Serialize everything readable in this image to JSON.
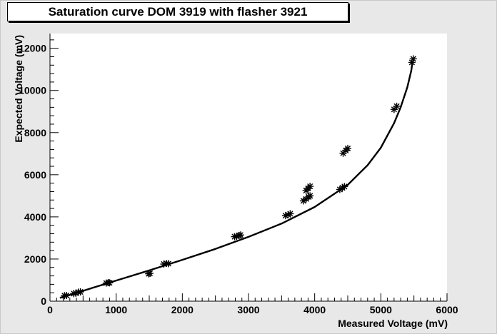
{
  "chart_data": {
    "type": "scatter",
    "title": "Saturation curve DOM 3919 with flasher 3921",
    "xlabel": "Measured Voltage (mV)",
    "ylabel": "Expected Voltage (mV)",
    "xlim": [
      0,
      6000
    ],
    "ylim": [
      0,
      12700
    ],
    "x_ticks": [
      "0",
      "1000",
      "2000",
      "3000",
      "4000",
      "5000",
      "6000"
    ],
    "y_ticks": [
      "0",
      "2000",
      "4000",
      "6000",
      "8000",
      "10000",
      "12000"
    ],
    "x_tick_values": [
      0,
      1000,
      2000,
      3000,
      4000,
      5000,
      6000
    ],
    "y_tick_values": [
      0,
      2000,
      4000,
      6000,
      8000,
      10000,
      12000
    ],
    "grid": false,
    "legend": "none",
    "marker_color": "#000000",
    "background_color": "#e8e8e8",
    "plot_background_color": "#ffffff",
    "series": [
      {
        "values": [
          [
            220,
            260
          ],
          [
            250,
            270
          ],
          [
            360,
            360
          ],
          [
            390,
            380
          ],
          [
            430,
            430
          ],
          [
            460,
            440
          ],
          [
            850,
            860
          ],
          [
            880,
            880
          ],
          [
            900,
            870
          ],
          [
            1490,
            1300
          ],
          [
            1510,
            1320
          ],
          [
            1720,
            1760
          ],
          [
            1760,
            1790
          ],
          [
            1790,
            1780
          ],
          [
            2790,
            3060
          ],
          [
            2820,
            3080
          ],
          [
            2860,
            3120
          ],
          [
            2880,
            3140
          ],
          [
            3560,
            4060
          ],
          [
            3600,
            4100
          ],
          [
            3630,
            4150
          ],
          [
            3830,
            4760
          ],
          [
            3870,
            4850
          ],
          [
            3910,
            4950
          ],
          [
            3930,
            5000
          ],
          [
            3870,
            5250
          ],
          [
            3900,
            5350
          ],
          [
            3930,
            5450
          ],
          [
            4380,
            5300
          ],
          [
            4420,
            5380
          ],
          [
            4450,
            5440
          ],
          [
            4430,
            7020
          ],
          [
            4470,
            7150
          ],
          [
            4500,
            7250
          ],
          [
            5200,
            9100
          ],
          [
            5240,
            9250
          ],
          [
            5470,
            11330
          ],
          [
            5490,
            11500
          ]
        ]
      },
      {
        "type": "line",
        "values": [
          [
            150,
            160
          ],
          [
            500,
            490
          ],
          [
            1000,
            980
          ],
          [
            1500,
            1460
          ],
          [
            2000,
            1960
          ],
          [
            2500,
            2480
          ],
          [
            3000,
            3050
          ],
          [
            3500,
            3680
          ],
          [
            4000,
            4470
          ],
          [
            4500,
            5520
          ],
          [
            4800,
            6450
          ],
          [
            5000,
            7280
          ],
          [
            5200,
            8450
          ],
          [
            5300,
            9200
          ],
          [
            5400,
            10150
          ],
          [
            5460,
            10950
          ],
          [
            5480,
            11400
          ]
        ]
      }
    ]
  }
}
